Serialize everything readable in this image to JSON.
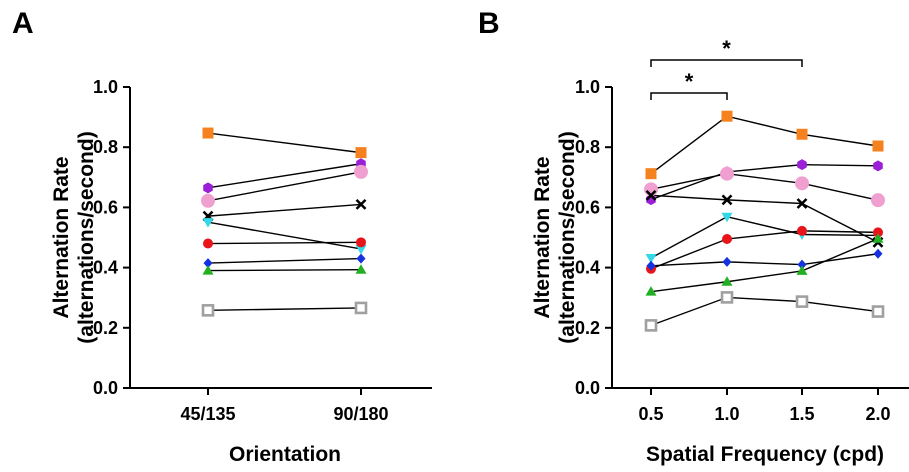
{
  "chart_data": [
    {
      "panel": "A",
      "type": "line",
      "categories": [
        "45/135",
        "90/180"
      ],
      "xlabel": "Orientation",
      "ylabel_lines": [
        "Alternation Rate",
        "(alternations/second)"
      ],
      "ylim": [
        0,
        1.0
      ],
      "yticks": [
        "0.0",
        "0.2",
        "0.4",
        "0.6",
        "0.8",
        "1.0"
      ],
      "series": [
        {
          "marker": "square",
          "color": "#f5821f",
          "values": [
            0.847,
            0.782
          ]
        },
        {
          "marker": "hexagon",
          "color": "#9a1fd6",
          "values": [
            0.665,
            0.745
          ]
        },
        {
          "marker": "circle",
          "color": "#f0a0d0",
          "values": [
            0.622,
            0.718
          ]
        },
        {
          "marker": "x",
          "color": "#000000",
          "values": [
            0.571,
            0.61
          ]
        },
        {
          "marker": "triangle-down",
          "color": "#32d9e8",
          "values": [
            0.551,
            0.462
          ]
        },
        {
          "marker": "circle-small",
          "color": "#e8141a",
          "values": [
            0.48,
            0.484
          ]
        },
        {
          "marker": "diamond",
          "color": "#1432e0",
          "values": [
            0.415,
            0.43
          ]
        },
        {
          "marker": "triangle-up",
          "color": "#22b022",
          "values": [
            0.39,
            0.393
          ]
        },
        {
          "marker": "square-open",
          "color": "#a0a0a0",
          "values": [
            0.258,
            0.266
          ]
        }
      ]
    },
    {
      "panel": "B",
      "type": "line",
      "categories": [
        "0.5",
        "1.0",
        "1.5",
        "2.0"
      ],
      "xlabel": "Spatial Frequency (cpd)",
      "ylabel_lines": [
        "Alternation Rate",
        "(alternations/second)"
      ],
      "ylim": [
        0,
        1.0
      ],
      "yticks": [
        "0.0",
        "0.2",
        "0.4",
        "0.6",
        "0.8",
        "1.0"
      ],
      "significance": [
        {
          "from": "0.5",
          "to": "1.0",
          "label": "*"
        },
        {
          "from": "0.5",
          "to": "1.5",
          "label": "*"
        }
      ],
      "series": [
        {
          "marker": "square",
          "color": "#f5821f",
          "values": [
            0.712,
            0.903,
            0.843,
            0.804
          ]
        },
        {
          "marker": "hexagon",
          "color": "#9a1fd6",
          "values": [
            0.626,
            0.718,
            0.742,
            0.738
          ]
        },
        {
          "marker": "circle",
          "color": "#f0a0d0",
          "values": [
            0.66,
            0.712,
            0.68,
            0.624
          ]
        },
        {
          "marker": "x",
          "color": "#000000",
          "values": [
            0.64,
            0.625,
            0.613,
            0.484
          ]
        },
        {
          "marker": "triangle-down",
          "color": "#32d9e8",
          "values": [
            0.432,
            0.569,
            0.51,
            0.507
          ]
        },
        {
          "marker": "circle-small",
          "color": "#e8141a",
          "values": [
            0.396,
            0.495,
            0.522,
            0.517
          ]
        },
        {
          "marker": "diamond",
          "color": "#1432e0",
          "values": [
            0.406,
            0.419,
            0.41,
            0.446
          ]
        },
        {
          "marker": "triangle-up",
          "color": "#22b022",
          "values": [
            0.32,
            0.353,
            0.389,
            0.496
          ]
        },
        {
          "marker": "square-open",
          "color": "#a0a0a0",
          "values": [
            0.208,
            0.301,
            0.287,
            0.254
          ]
        }
      ]
    }
  ],
  "panels": {
    "A": {
      "letter": "A"
    },
    "B": {
      "letter": "B"
    }
  }
}
